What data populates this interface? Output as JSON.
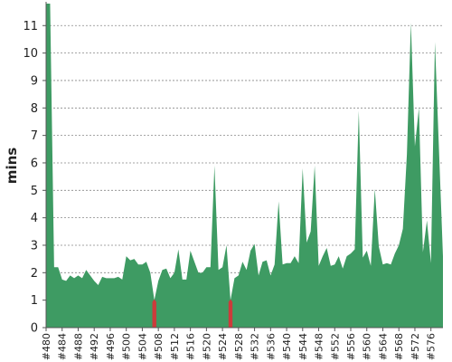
{
  "chart_data": {
    "type": "area",
    "title": "",
    "xlabel": "",
    "ylabel": "mins",
    "ylim": [
      0,
      11.8
    ],
    "ytick_values": [
      0,
      1,
      2,
      3,
      4,
      5,
      6,
      7,
      8,
      9,
      10,
      11
    ],
    "grid": true,
    "legend": "none",
    "build_start": 480,
    "build_end": 579,
    "xtick_labels": [
      "#480",
      "#484",
      "#488",
      "#492",
      "#496",
      "#500",
      "#504",
      "#508",
      "#512",
      "#516",
      "#520",
      "#524",
      "#528",
      "#532",
      "#536",
      "#540",
      "#544",
      "#548",
      "#552",
      "#556",
      "#560",
      "#564",
      "#568",
      "#572",
      "#576"
    ],
    "series": [
      {
        "color": "#3e9b63",
        "builds": [
          480,
          481,
          482,
          483,
          484,
          485,
          486,
          487,
          488,
          489,
          490,
          491,
          492,
          493,
          494,
          495,
          496,
          497,
          498,
          499,
          500,
          501,
          502,
          503,
          504,
          505,
          506,
          507,
          508,
          509,
          510,
          511,
          512,
          513,
          514,
          515,
          516,
          517,
          518,
          519,
          520,
          521,
          522,
          523,
          524,
          525,
          526,
          527,
          528,
          529,
          530,
          531,
          532,
          533,
          534,
          535,
          536,
          537,
          538,
          539,
          540,
          541,
          542,
          543,
          544,
          545,
          546,
          547,
          548,
          549,
          550,
          551,
          552,
          553,
          554,
          555,
          556,
          557,
          558,
          559,
          560,
          561,
          562,
          563,
          564,
          565,
          566,
          567,
          568,
          569,
          570,
          571,
          572,
          573,
          574,
          575,
          576,
          577,
          578,
          579
        ],
        "values": [
          11.8,
          11.8,
          2.2,
          2.2,
          1.75,
          1.7,
          1.9,
          1.8,
          1.9,
          1.8,
          2.1,
          1.9,
          1.7,
          1.55,
          1.85,
          1.8,
          1.8,
          1.8,
          1.85,
          1.75,
          2.6,
          2.45,
          2.5,
          2.3,
          2.3,
          2.4,
          2.0,
          1.0,
          1.7,
          2.1,
          2.15,
          1.8,
          2.0,
          2.85,
          1.75,
          1.75,
          2.8,
          2.4,
          2.0,
          2.0,
          2.2,
          2.2,
          5.9,
          2.1,
          2.2,
          3.0,
          1.0,
          1.8,
          1.9,
          2.4,
          2.1,
          2.8,
          3.05,
          1.9,
          2.4,
          2.45,
          1.9,
          2.3,
          4.6,
          2.3,
          2.35,
          2.35,
          2.6,
          2.35,
          5.8,
          3.1,
          3.5,
          5.9,
          2.25,
          2.6,
          2.9,
          2.25,
          2.3,
          2.6,
          2.15,
          2.6,
          2.7,
          2.85,
          7.9,
          2.55,
          2.8,
          2.25,
          5.05,
          2.95,
          2.3,
          2.35,
          2.3,
          2.7,
          3.0,
          3.6,
          6.3,
          11.1,
          6.6,
          8.0,
          2.75,
          3.9,
          2.35,
          10.4,
          6.5,
          2.6
        ]
      },
      {
        "color": "#cc3b3b",
        "builds": [
          507,
          526
        ],
        "values": [
          1.0,
          1.0
        ]
      }
    ]
  }
}
